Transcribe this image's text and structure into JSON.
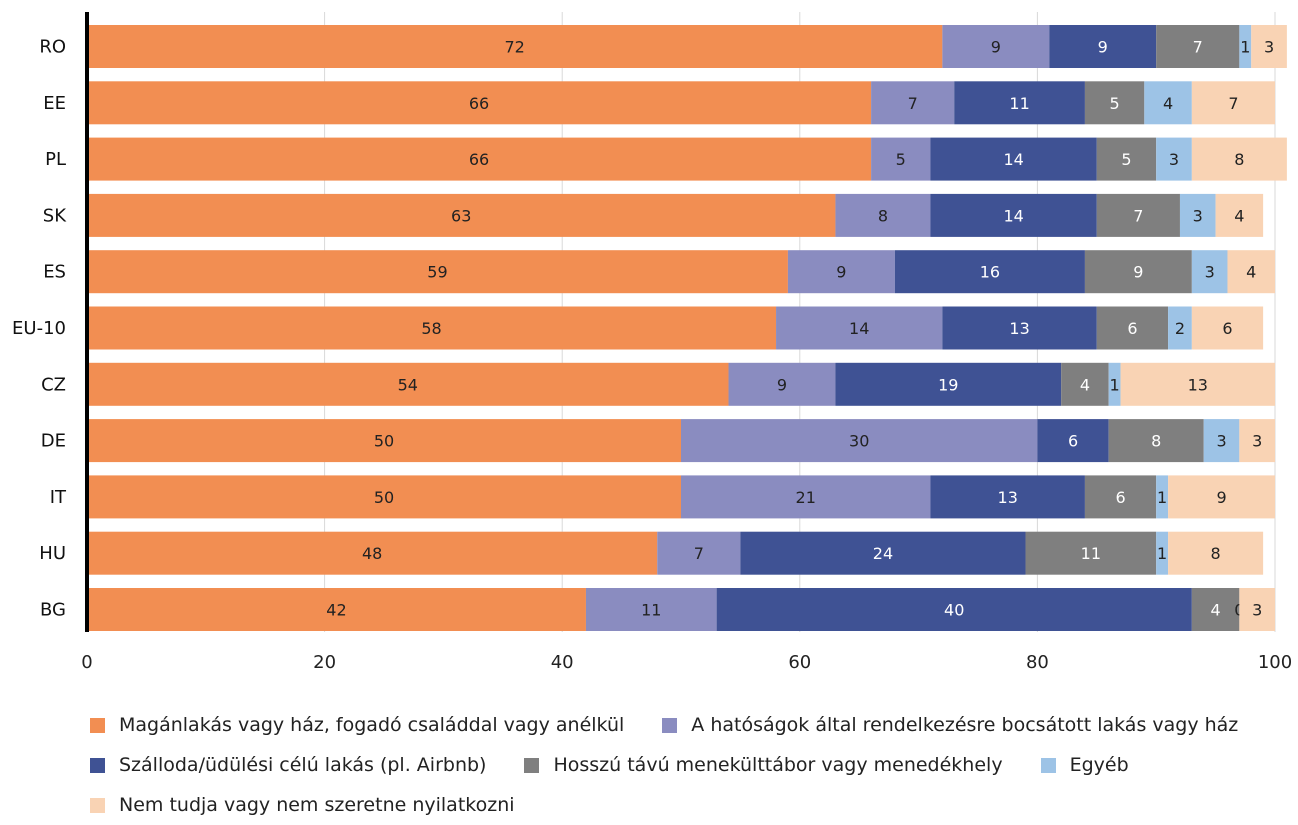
{
  "chart_data": {
    "type": "bar",
    "orientation": "horizontal",
    "stacked": true,
    "categories": [
      "RO",
      "EE",
      "PL",
      "SK",
      "ES",
      "EU-10",
      "CZ",
      "DE",
      "IT",
      "HU",
      "BG"
    ],
    "series": [
      {
        "name": "Magánlakás vagy ház, fogadó családdal vagy anélkül",
        "color": "#F28E52",
        "label_color": "#222222",
        "values": [
          72,
          66,
          66,
          63,
          59,
          58,
          54,
          50,
          50,
          48,
          42
        ]
      },
      {
        "name": "A hatóságok által rendelkezésre bocsátott lakás vagy ház",
        "color": "#8A8CC0",
        "label_color": "#222222",
        "values": [
          9,
          7,
          5,
          8,
          9,
          14,
          9,
          30,
          21,
          7,
          11
        ]
      },
      {
        "name": "Szálloda/üdülési célú lakás (pl. Airbnb)",
        "color": "#3F5294",
        "label_color": "#ffffff",
        "values": [
          9,
          11,
          14,
          14,
          16,
          13,
          19,
          6,
          13,
          24,
          40
        ]
      },
      {
        "name": "Hosszú távú menekülttábor vagy menedékhely",
        "color": "#7F7F7F",
        "label_color": "#ffffff",
        "values": [
          7,
          5,
          5,
          7,
          9,
          6,
          4,
          8,
          6,
          11,
          4
        ]
      },
      {
        "name": "Egyéb",
        "color": "#9DC3E6",
        "label_color": "#222222",
        "values": [
          1,
          4,
          3,
          3,
          3,
          2,
          1,
          3,
          1,
          1,
          0
        ]
      },
      {
        "name": "Nem tudja vagy nem szeretne nyilatkozni",
        "color": "#F9D3B4",
        "label_color": "#222222",
        "values": [
          3,
          7,
          8,
          4,
          4,
          6,
          13,
          3,
          9,
          8,
          3
        ]
      }
    ],
    "xlim": [
      0,
      100
    ],
    "xticks": [
      0,
      20,
      40,
      60,
      80,
      100
    ],
    "grid": true,
    "legend_position": "bottom"
  }
}
